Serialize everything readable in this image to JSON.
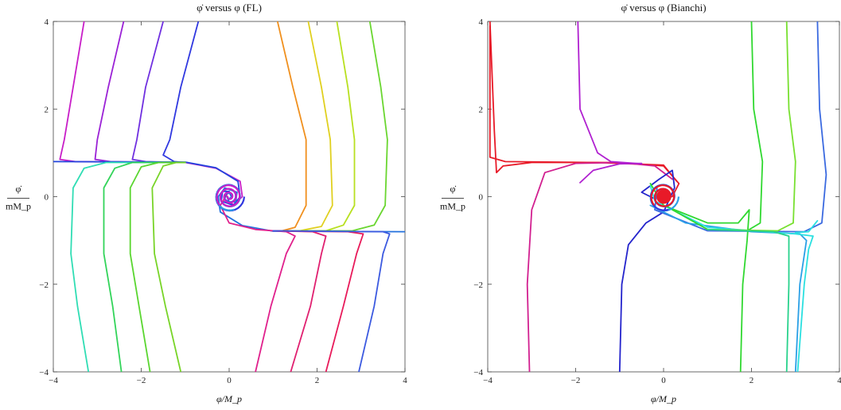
{
  "chart_data": [
    {
      "type": "line",
      "title": "φ̇ versus φ (FL)",
      "xlabel": "φ/M_p",
      "ylabel_top": "φ̇",
      "ylabel_bottom": "mM_p",
      "xlim": [
        -4,
        4
      ],
      "ylim": [
        -4,
        4
      ],
      "x_ticks": [
        -4,
        -2,
        0,
        2,
        4
      ],
      "y_ticks": [
        -4,
        -2,
        0,
        2,
        4
      ],
      "tick_labels": [
        "−4",
        "−2",
        "0",
        "2",
        "4"
      ],
      "grid": false,
      "series": [
        {
          "color": "#c81ec8",
          "points": [
            [
              -3.3,
              4.0
            ],
            [
              -3.55,
              2.5
            ],
            [
              -3.75,
              1.3
            ],
            [
              -3.85,
              0.85
            ],
            [
              -3.5,
              0.8
            ],
            [
              -1.0,
              0.78
            ],
            [
              -0.3,
              0.65
            ],
            [
              0.25,
              0.35
            ],
            [
              0.3,
              0.0
            ],
            [
              0.1,
              -0.18
            ],
            [
              -0.12,
              -0.05
            ],
            [
              -0.05,
              0.12
            ],
            [
              0.05,
              0.05
            ]
          ]
        },
        {
          "color": "#9b22d6",
          "points": [
            [
              -2.4,
              4.0
            ],
            [
              -2.75,
              2.5
            ],
            [
              -3.0,
              1.3
            ],
            [
              -3.05,
              0.85
            ],
            [
              -2.7,
              0.8
            ],
            [
              -1.0,
              0.78
            ]
          ]
        },
        {
          "color": "#7030e0",
          "points": [
            [
              -1.5,
              4.0
            ],
            [
              -1.9,
              2.5
            ],
            [
              -2.1,
              1.3
            ],
            [
              -2.2,
              0.85
            ],
            [
              -1.9,
              0.8
            ],
            [
              -1.0,
              0.78
            ]
          ]
        },
        {
          "color": "#3038e0",
          "points": [
            [
              -0.7,
              4.0
            ],
            [
              -1.1,
              2.5
            ],
            [
              -1.35,
              1.3
            ],
            [
              -1.5,
              0.95
            ],
            [
              -1.25,
              0.8
            ],
            [
              -1.0,
              0.78
            ]
          ]
        },
        {
          "color": "#2244dd",
          "points": [
            [
              -4.0,
              0.8
            ],
            [
              -1.0,
              0.79
            ],
            [
              -0.3,
              0.66
            ],
            [
              0.2,
              0.35
            ],
            [
              0.25,
              0.0
            ],
            [
              0.1,
              -0.2
            ],
            [
              -0.18,
              -0.1
            ],
            [
              -0.15,
              0.12
            ],
            [
              0.0,
              0.12
            ],
            [
              0.05,
              0.0
            ]
          ]
        },
        {
          "color": "#30ddb4",
          "points": [
            [
              -3.2,
              -4.0
            ],
            [
              -3.45,
              -2.5
            ],
            [
              -3.6,
              -1.3
            ],
            [
              -3.55,
              0.2
            ],
            [
              -3.3,
              0.65
            ],
            [
              -2.8,
              0.78
            ],
            [
              -1.0,
              0.78
            ]
          ]
        },
        {
          "color": "#33d45a",
          "points": [
            [
              -2.45,
              -4.0
            ],
            [
              -2.65,
              -2.5
            ],
            [
              -2.85,
              -1.3
            ],
            [
              -2.85,
              0.2
            ],
            [
              -2.6,
              0.65
            ],
            [
              -2.2,
              0.78
            ],
            [
              -1.0,
              0.78
            ]
          ]
        },
        {
          "color": "#5ad630",
          "points": [
            [
              -1.8,
              -4.0
            ],
            [
              -2.05,
              -2.5
            ],
            [
              -2.25,
              -1.3
            ],
            [
              -2.25,
              0.2
            ],
            [
              -2.0,
              0.68
            ],
            [
              -1.6,
              0.78
            ],
            [
              -1.0,
              0.78
            ]
          ]
        },
        {
          "color": "#78d428",
          "points": [
            [
              -1.1,
              -4.0
            ],
            [
              -1.45,
              -2.5
            ],
            [
              -1.7,
              -1.3
            ],
            [
              -1.75,
              0.2
            ],
            [
              -1.5,
              0.7
            ],
            [
              -1.2,
              0.78
            ],
            [
              -1.0,
              0.78
            ]
          ]
        },
        {
          "color": "#f0901e",
          "points": [
            [
              1.1,
              4.0
            ],
            [
              1.45,
              2.5
            ],
            [
              1.75,
              1.3
            ],
            [
              1.75,
              -0.2
            ],
            [
              1.5,
              -0.7
            ],
            [
              1.2,
              -0.78
            ],
            [
              1.0,
              -0.78
            ]
          ]
        },
        {
          "color": "#e0d020",
          "points": [
            [
              1.8,
              4.0
            ],
            [
              2.1,
              2.5
            ],
            [
              2.3,
              1.3
            ],
            [
              2.35,
              -0.2
            ],
            [
              2.1,
              -0.68
            ],
            [
              1.6,
              -0.78
            ],
            [
              1.0,
              -0.78
            ]
          ]
        },
        {
          "color": "#b8e020",
          "points": [
            [
              2.45,
              4.0
            ],
            [
              2.7,
              2.5
            ],
            [
              2.85,
              1.3
            ],
            [
              2.85,
              -0.2
            ],
            [
              2.6,
              -0.65
            ],
            [
              2.2,
              -0.78
            ],
            [
              1.0,
              -0.78
            ]
          ]
        },
        {
          "color": "#6ad630",
          "points": [
            [
              3.2,
              4.0
            ],
            [
              3.45,
              2.5
            ],
            [
              3.6,
              1.3
            ],
            [
              3.55,
              -0.2
            ],
            [
              3.3,
              -0.65
            ],
            [
              2.8,
              -0.78
            ],
            [
              1.0,
              -0.78
            ]
          ]
        },
        {
          "color": "#2270dd",
          "points": [
            [
              4.0,
              -0.8
            ],
            [
              1.0,
              -0.79
            ],
            [
              0.3,
              -0.66
            ],
            [
              -0.2,
              -0.35
            ],
            [
              -0.25,
              0.0
            ],
            [
              -0.1,
              0.2
            ],
            [
              0.18,
              0.1
            ],
            [
              0.15,
              -0.12
            ],
            [
              0.0,
              -0.12
            ],
            [
              -0.05,
              0.0
            ]
          ]
        },
        {
          "color": "#e0208c",
          "points": [
            [
              0.6,
              -4.0
            ],
            [
              0.95,
              -2.5
            ],
            [
              1.3,
              -1.3
            ],
            [
              1.5,
              -0.9
            ],
            [
              1.3,
              -0.8
            ],
            [
              0.6,
              -0.75
            ],
            [
              0.0,
              -0.6
            ],
            [
              -0.2,
              -0.2
            ],
            [
              -0.05,
              0.05
            ]
          ]
        },
        {
          "color": "#e02070",
          "points": [
            [
              1.4,
              -4.0
            ],
            [
              1.85,
              -2.5
            ],
            [
              2.1,
              -1.3
            ],
            [
              2.2,
              -0.9
            ],
            [
              1.9,
              -0.8
            ],
            [
              1.0,
              -0.78
            ]
          ]
        },
        {
          "color": "#e81a5a",
          "points": [
            [
              2.2,
              -4.0
            ],
            [
              2.6,
              -2.5
            ],
            [
              2.9,
              -1.3
            ],
            [
              3.05,
              -0.85
            ],
            [
              2.7,
              -0.8
            ],
            [
              1.0,
              -0.78
            ]
          ]
        },
        {
          "color": "#3c5ae0",
          "points": [
            [
              2.95,
              -4.0
            ],
            [
              3.3,
              -2.5
            ],
            [
              3.5,
              -1.3
            ],
            [
              3.65,
              -0.85
            ],
            [
              3.5,
              -0.8
            ],
            [
              1.0,
              -0.78
            ]
          ]
        }
      ],
      "spiral": {
        "center": [
          0.0,
          0.0
        ],
        "colors": [
          "#3038e0",
          "#2aa0e6",
          "#c81ec8"
        ]
      }
    },
    {
      "type": "line",
      "title": "φ̇ versus φ (Bianchi)",
      "xlabel": "φ/M_p",
      "ylabel_top": "φ̇",
      "ylabel_bottom": "mM_p",
      "xlim": [
        -4,
        4
      ],
      "ylim": [
        -4,
        4
      ],
      "x_ticks": [
        -4,
        -2,
        0,
        2,
        4
      ],
      "y_ticks": [
        -4,
        -2,
        0,
        2,
        4
      ],
      "tick_labels": [
        "−4",
        "−2",
        "0",
        "2",
        "4"
      ],
      "grid": false,
      "series": [
        {
          "color": "#e81a28",
          "points": [
            [
              -3.95,
              4.0
            ],
            [
              -3.85,
              1.5
            ],
            [
              -3.8,
              0.55
            ],
            [
              -3.65,
              0.7
            ],
            [
              -3.0,
              0.78
            ],
            [
              -1.0,
              0.78
            ],
            [
              0.0,
              0.7
            ],
            [
              0.35,
              0.3
            ],
            [
              0.2,
              0.0
            ],
            [
              -0.1,
              0.0
            ],
            [
              0.05,
              0.15
            ],
            [
              0.1,
              0.0
            ]
          ]
        },
        {
          "color": "#e81a28",
          "points": [
            [
              -3.95,
              3.9
            ],
            [
              -3.95,
              0.9
            ],
            [
              -3.6,
              0.8
            ],
            [
              -1.5,
              0.78
            ],
            [
              0.0,
              0.72
            ],
            [
              0.3,
              0.35
            ]
          ]
        },
        {
          "color": "#d22090",
          "points": [
            [
              -3.05,
              -4.0
            ],
            [
              -3.1,
              -2.0
            ],
            [
              -3.0,
              -0.3
            ],
            [
              -2.7,
              0.55
            ],
            [
              -2.0,
              0.76
            ],
            [
              -1.0,
              0.78
            ],
            [
              -0.2,
              0.7
            ],
            [
              0.2,
              0.4
            ]
          ]
        },
        {
          "color": "#b020d0",
          "points": [
            [
              -1.95,
              4.0
            ],
            [
              -1.9,
              2.0
            ],
            [
              -1.5,
              1.0
            ],
            [
              -1.2,
              0.8
            ],
            [
              -0.5,
              0.75
            ]
          ]
        },
        {
          "color": "#b020d0",
          "points": [
            [
              -1.9,
              0.32
            ],
            [
              -1.6,
              0.6
            ],
            [
              -1.0,
              0.75
            ],
            [
              -0.5,
              0.76
            ]
          ]
        },
        {
          "color": "#2424cc",
          "points": [
            [
              -1.0,
              -4.0
            ],
            [
              -0.95,
              -2.0
            ],
            [
              -0.8,
              -1.1
            ],
            [
              -0.4,
              -0.6
            ],
            [
              0.0,
              -0.35
            ],
            [
              0.25,
              0.2
            ],
            [
              0.2,
              0.6
            ],
            [
              -0.1,
              0.4
            ],
            [
              -0.5,
              0.1
            ],
            [
              -0.2,
              -0.05
            ]
          ]
        },
        {
          "color": "#3b6ae0",
          "points": [
            [
              3.5,
              4.0
            ],
            [
              3.55,
              2.0
            ],
            [
              3.7,
              0.5
            ],
            [
              3.6,
              -0.6
            ],
            [
              3.2,
              -0.8
            ],
            [
              1.0,
              -0.78
            ],
            [
              -0.2,
              -0.3
            ],
            [
              -0.15,
              0.2
            ]
          ]
        },
        {
          "color": "#2aa0e6",
          "points": [
            [
              3.0,
              -4.0
            ],
            [
              3.1,
              -2.0
            ],
            [
              3.25,
              -1.0
            ],
            [
              3.1,
              -0.85
            ],
            [
              2.0,
              -0.8
            ],
            [
              0.5,
              -0.6
            ],
            [
              -0.3,
              -0.2
            ]
          ]
        },
        {
          "color": "#2ae0e0",
          "points": [
            [
              3.05,
              -4.0
            ],
            [
              3.2,
              -2.0
            ],
            [
              3.3,
              -1.2
            ],
            [
              3.4,
              -0.9
            ],
            [
              3.0,
              -0.85
            ],
            [
              1.0,
              -0.7
            ],
            [
              -0.2,
              -0.1
            ],
            [
              -0.3,
              0.25
            ]
          ]
        },
        {
          "color": "#2ae0e0",
          "points": [
            [
              3.5,
              -0.55
            ],
            [
              3.3,
              -0.8
            ],
            [
              3.0,
              -0.82
            ]
          ]
        },
        {
          "color": "#30d830",
          "points": [
            [
              2.0,
              4.0
            ],
            [
              2.05,
              2.0
            ],
            [
              2.25,
              0.8
            ],
            [
              2.2,
              -0.6
            ],
            [
              1.9,
              -0.78
            ],
            [
              1.0,
              -0.75
            ],
            [
              0.2,
              -0.3
            ]
          ]
        },
        {
          "color": "#30d830",
          "points": [
            [
              1.75,
              -4.0
            ],
            [
              1.8,
              -2.0
            ],
            [
              1.9,
              -1.0
            ],
            [
              1.95,
              -0.3
            ],
            [
              1.7,
              -0.6
            ],
            [
              1.0,
              -0.6
            ],
            [
              0.0,
              -0.2
            ],
            [
              -0.3,
              0.3
            ]
          ]
        },
        {
          "color": "#78e030",
          "points": [
            [
              2.8,
              4.0
            ],
            [
              2.85,
              2.0
            ],
            [
              3.0,
              0.8
            ],
            [
              2.95,
              -0.6
            ],
            [
              2.6,
              -0.78
            ],
            [
              1.0,
              -0.75
            ]
          ]
        },
        {
          "color": "#28d28c",
          "points": [
            [
              2.8,
              -4.0
            ],
            [
              2.85,
              -2.0
            ],
            [
              2.85,
              -0.9
            ],
            [
              2.5,
              -0.8
            ],
            [
              1.0,
              -0.75
            ]
          ]
        }
      ],
      "dot": {
        "center": [
          0.0,
          0.0
        ],
        "color": "#e81a28"
      },
      "spiral": {
        "center": [
          0.0,
          0.0
        ],
        "colors": [
          "#2aa0e6",
          "#3038e0",
          "#e81a28"
        ]
      }
    }
  ]
}
